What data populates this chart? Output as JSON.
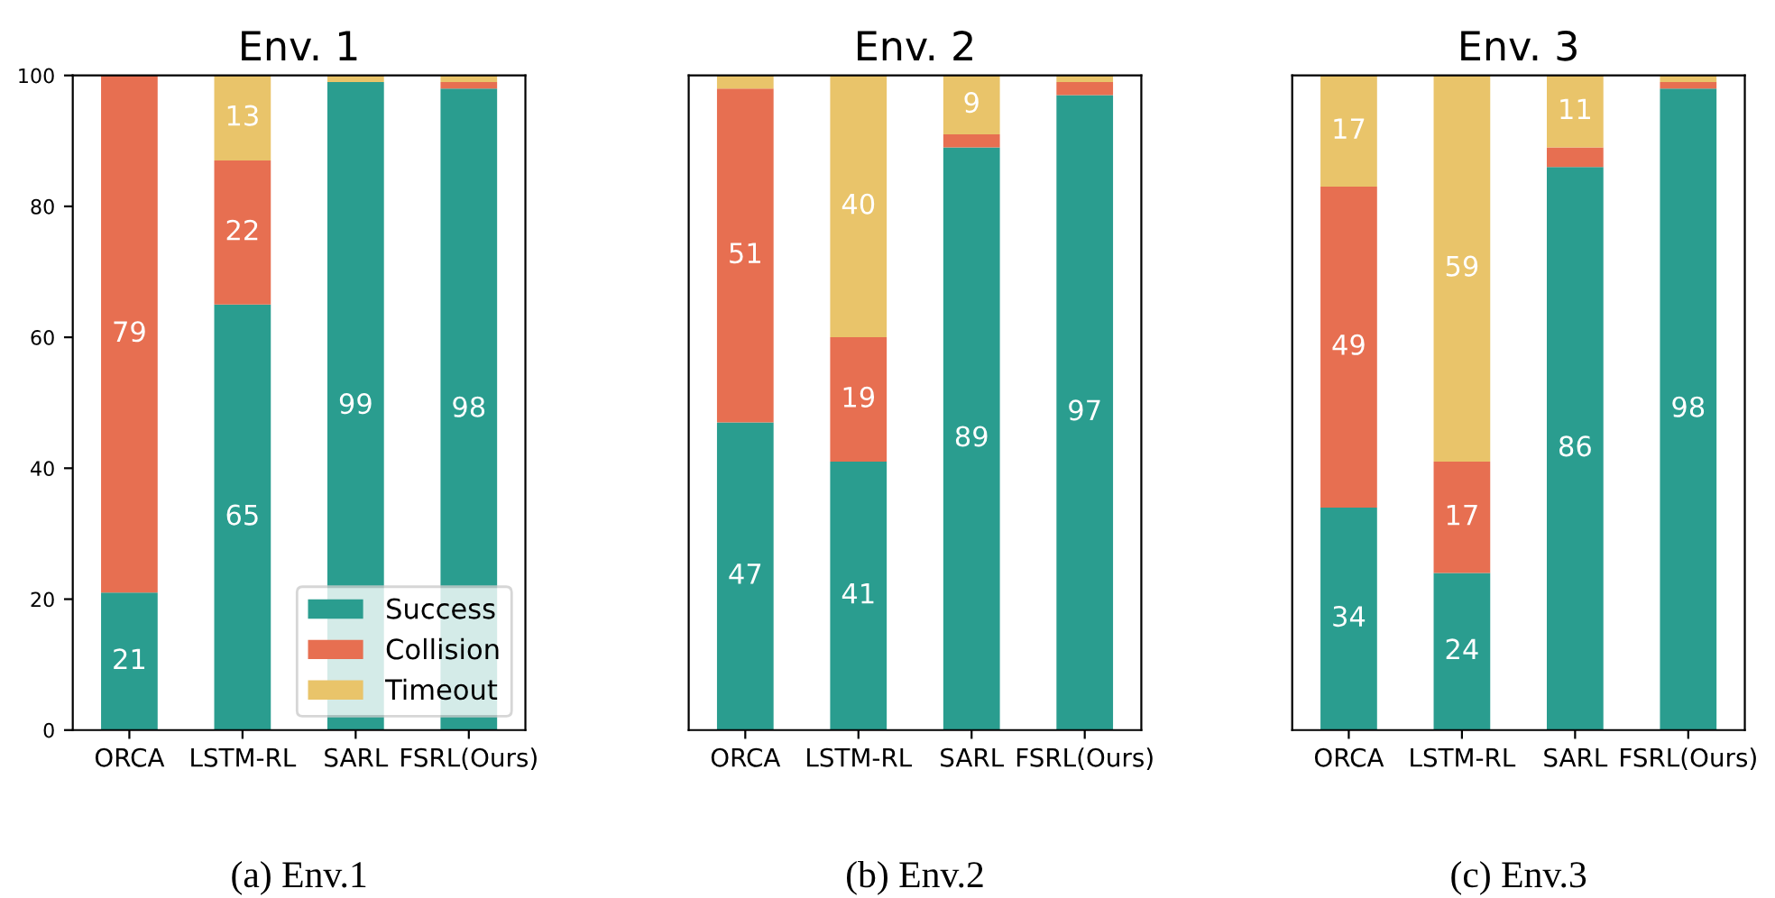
{
  "chart_data": [
    {
      "type": "bar",
      "title": "Env. 1",
      "stacked": true,
      "categories": [
        "ORCA",
        "LSTM-RL",
        "SARL",
        "FSRL(Ours)"
      ],
      "ylim": [
        0,
        100
      ],
      "yticks": [
        0,
        20,
        40,
        60,
        80,
        100
      ],
      "legend": "bottom right",
      "annotations": [
        "(a) Env.1"
      ],
      "series": [
        {
          "name": "Success",
          "color": "#2a9d8f",
          "values": [
            21,
            65,
            99,
            98
          ],
          "value_labels": [
            "21",
            "65",
            "99",
            "98"
          ]
        },
        {
          "name": "Collision",
          "color": "#e76f51",
          "values": [
            79,
            22,
            0,
            1
          ],
          "value_labels": [
            "79",
            "22",
            null,
            null
          ]
        },
        {
          "name": "Timeout",
          "color": "#e9c46a",
          "values": [
            0,
            13,
            1,
            1
          ],
          "value_labels": [
            null,
            "13",
            null,
            null
          ]
        }
      ]
    },
    {
      "type": "bar",
      "title": "Env. 2",
      "stacked": true,
      "categories": [
        "ORCA",
        "LSTM-RL",
        "SARL",
        "FSRL(Ours)"
      ],
      "ylim": [
        0,
        100
      ],
      "tick_labels": "x",
      "annotations": [
        "(b) Env.2"
      ],
      "series": [
        {
          "color": "#2a9d8f",
          "values": [
            47,
            41,
            89,
            97
          ],
          "value_labels": [
            "47",
            "41",
            "89",
            "97"
          ]
        },
        {
          "color": "#e76f51",
          "values": [
            51,
            19,
            2,
            2
          ],
          "value_labels": [
            "51",
            "19",
            null,
            null
          ]
        },
        {
          "color": "#e9c46a",
          "values": [
            2,
            40,
            9,
            1
          ],
          "value_labels": [
            null,
            "40",
            "9",
            null
          ]
        }
      ]
    },
    {
      "type": "bar",
      "title": "Env. 3",
      "stacked": true,
      "categories": [
        "ORCA",
        "LSTM-RL",
        "SARL",
        "FSRL(Ours)"
      ],
      "ylim": [
        0,
        100
      ],
      "tick_labels": "x",
      "annotations": [
        "(c) Env.3"
      ],
      "series": [
        {
          "color": "#2a9d8f",
          "values": [
            34,
            24,
            86,
            98
          ],
          "value_labels": [
            "34",
            "24",
            "86",
            "98"
          ]
        },
        {
          "color": "#e76f51",
          "values": [
            49,
            17,
            3,
            1
          ],
          "value_labels": [
            "49",
            "17",
            null,
            null
          ]
        },
        {
          "color": "#e9c46a",
          "values": [
            17,
            59,
            11,
            1
          ],
          "value_labels": [
            "17",
            "59",
            "11",
            null
          ]
        }
      ]
    }
  ]
}
